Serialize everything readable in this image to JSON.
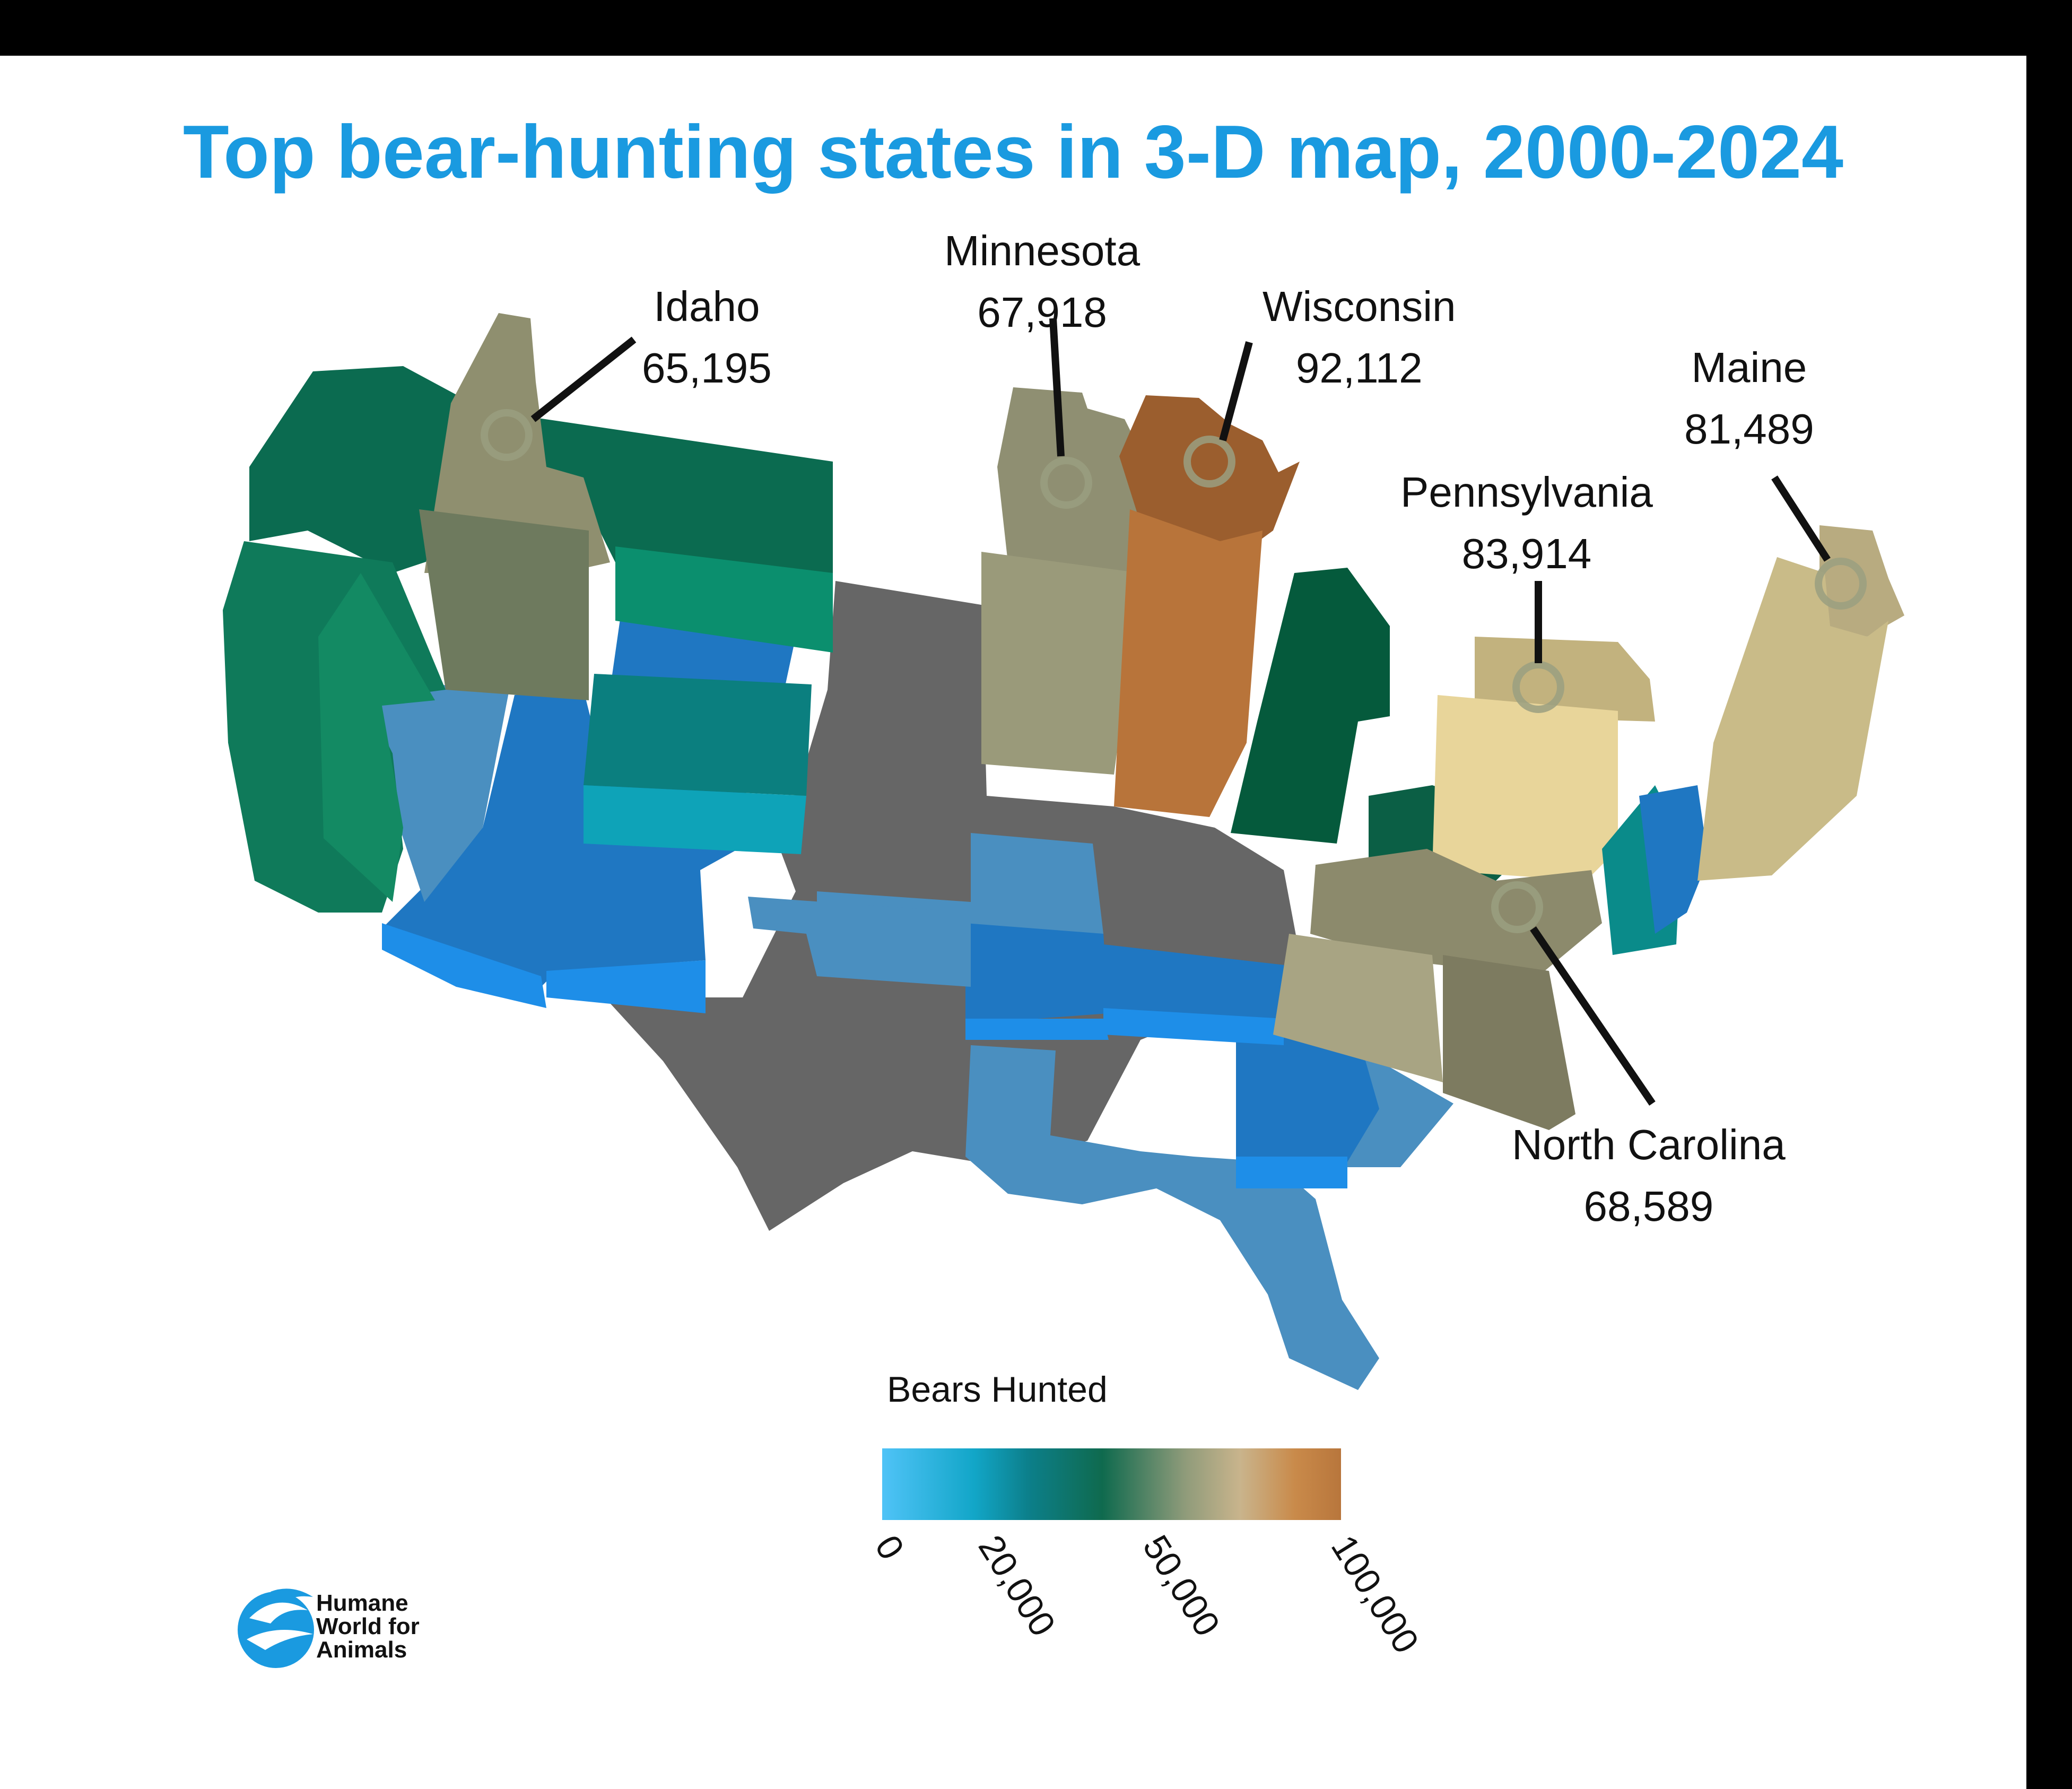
{
  "title": "Top bear-hunting states in 3-D map, 2000-2024",
  "callouts": [
    {
      "state": "Idaho",
      "value": "65,195"
    },
    {
      "state": "Minnesota",
      "value": "67,918"
    },
    {
      "state": "Wisconsin",
      "value": "92,112"
    },
    {
      "state": "Maine",
      "value": "81,489"
    },
    {
      "state": "Pennsylvania",
      "value": "83,914"
    },
    {
      "state": "North Carolina",
      "value": "68,589"
    }
  ],
  "legend": {
    "title": "Bears Hunted",
    "ticks": [
      "0",
      "20,000",
      "50,000",
      "100,000"
    ],
    "colors": [
      "#4fc3f7",
      "#12a6c8",
      "#0f6a4e",
      "#c9b48c",
      "#b8763c"
    ]
  },
  "logo": {
    "line1": "Humane",
    "line2": "World for",
    "line3": "Animals",
    "color": "#1a9ae0"
  },
  "map_colors": {
    "no_data": "#666666",
    "low": "#1f77c2",
    "light": "#4a8fc0",
    "teal": "#0b7f7f",
    "green": "#0b6b50",
    "khaki": "#8f8f6f",
    "orange": "#b8743a",
    "cream": "#e8d59a"
  }
}
